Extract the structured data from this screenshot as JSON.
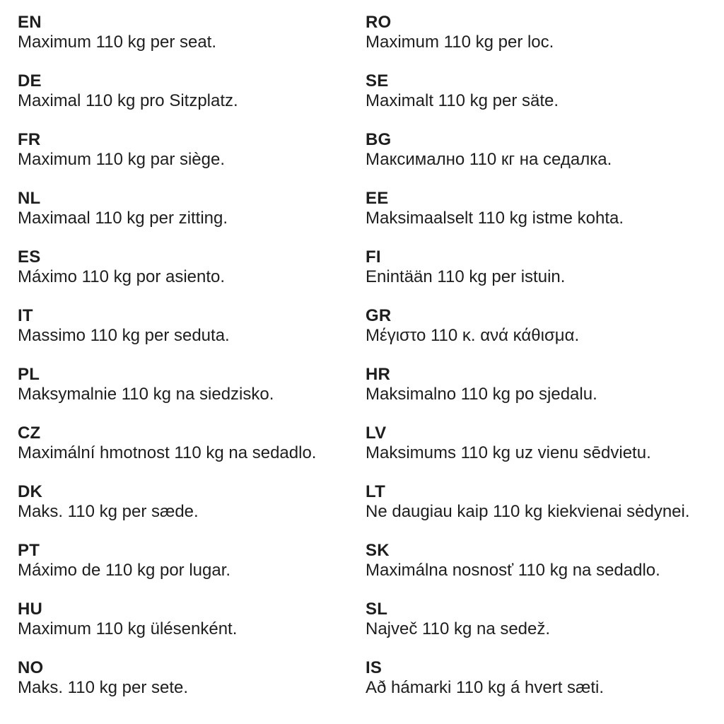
{
  "accent_colors": {
    "text": "#1e1e1e",
    "background": "#ffffff"
  },
  "columns": [
    {
      "entries": [
        {
          "code": "EN",
          "text": "Maximum 110 kg per seat."
        },
        {
          "code": "DE",
          "text": "Maximal 110 kg pro Sitzplatz."
        },
        {
          "code": "FR",
          "text": "Maximum 110 kg par siège."
        },
        {
          "code": "NL",
          "text": "Maximaal 110 kg per zitting."
        },
        {
          "code": "ES",
          "text": "Máximo 110 kg por asiento."
        },
        {
          "code": "IT",
          "text": "Massimo 110 kg per seduta."
        },
        {
          "code": "PL",
          "text": "Maksymalnie 110 kg na siedzisko."
        },
        {
          "code": "CZ",
          "text": "Maximální hmotnost 110 kg na sedadlo."
        },
        {
          "code": "DK",
          "text": "Maks. 110 kg per sæde."
        },
        {
          "code": "PT",
          "text": "Máximo de 110 kg por lugar."
        },
        {
          "code": "HU",
          "text": "Maximum 110 kg ülésenként."
        },
        {
          "code": "NO",
          "text": "Maks. 110 kg per sete."
        }
      ]
    },
    {
      "entries": [
        {
          "code": "RO",
          "text": "Maximum 110 kg per loc."
        },
        {
          "code": "SE",
          "text": "Maximalt 110 kg per säte."
        },
        {
          "code": "BG",
          "text": "Максимално 110 кг на седалка."
        },
        {
          "code": "EE",
          "text": "Maksimaalselt 110 kg istme kohta."
        },
        {
          "code": "FI",
          "text": "Enintään 110 kg per istuin."
        },
        {
          "code": "GR",
          "text": "Μέγιστο 110 κ. ανά κάθισμα."
        },
        {
          "code": "HR",
          "text": "Maksimalno 110 kg po sjedalu."
        },
        {
          "code": "LV",
          "text": "Maksimums 110 kg uz vienu sēdvietu."
        },
        {
          "code": "LT",
          "text": "Ne daugiau kaip 110 kg kiekvienai sėdynei."
        },
        {
          "code": "SK",
          "text": "Maximálna nosnosť 110 kg na sedadlo."
        },
        {
          "code": "SL",
          "text": "Največ 110 kg na sedež."
        },
        {
          "code": "IS",
          "text": "Að hámarki 110 kg á hvert sæti."
        }
      ]
    }
  ]
}
